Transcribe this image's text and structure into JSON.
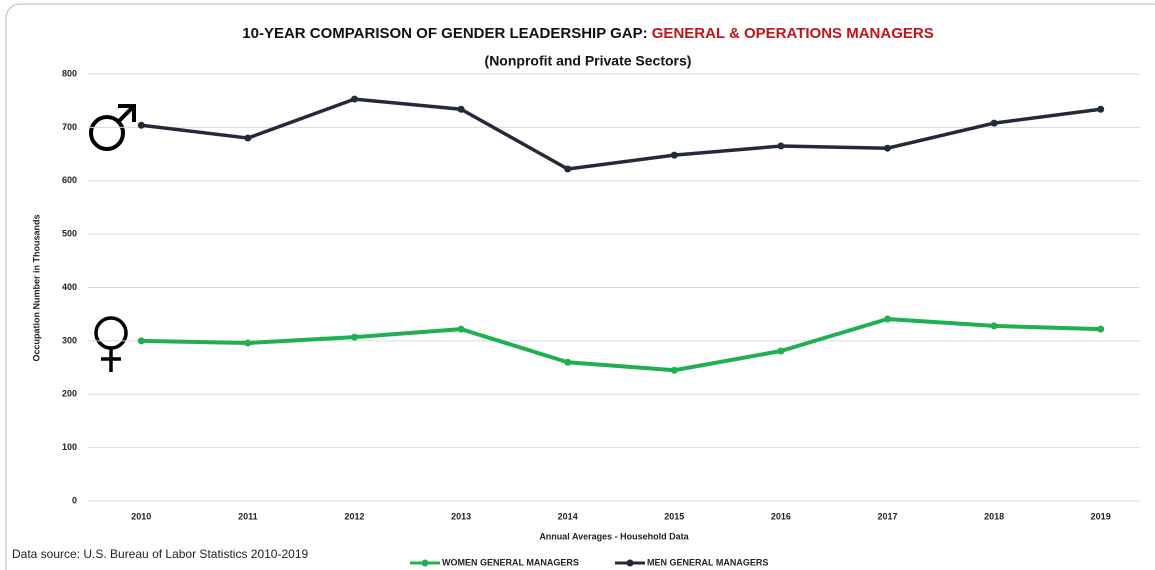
{
  "chart_data": {
    "type": "line",
    "title": "10-YEAR COMPARISON OF GENDER LEADERSHIP  GAP: ",
    "title_highlight": "GENERAL & OPERATIONS MANAGERS",
    "subtitle": "(Nonprofit and Private Sectors)",
    "y_label": "Occupation Number in Thousands",
    "x_label": "Annual Averages - Household Data",
    "source": "Data source: U.S. Bureau of Labor Statistics 2010-2019",
    "categories": [
      "2010",
      "2011",
      "2012",
      "2013",
      "2014",
      "2015",
      "2016",
      "2017",
      "2018",
      "2019"
    ],
    "series": [
      {
        "name": "WOMEN GENERAL MANAGERS",
        "color": "#1fb04f",
        "values": [
          300,
          296,
          307,
          322,
          260,
          245,
          281,
          341,
          328,
          322
        ]
      },
      {
        "name": "MEN GENERAL MANAGERS",
        "color": "#232a38",
        "values": [
          704,
          680,
          753,
          734,
          622,
          648,
          665,
          661,
          708,
          734
        ]
      }
    ],
    "ylim": [
      0,
      800
    ],
    "yticks": [
      0,
      100,
      200,
      300,
      400,
      500,
      600,
      700,
      800
    ],
    "grid": true,
    "legend": "bottom"
  }
}
